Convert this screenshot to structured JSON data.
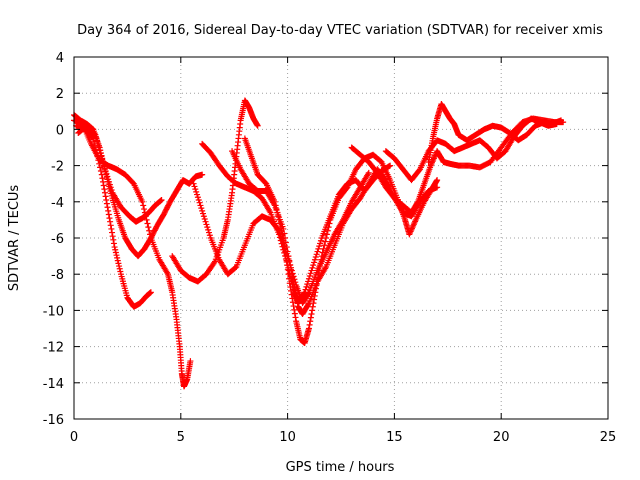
{
  "chart_data": {
    "type": "scatter",
    "title": "Day 364 of 2016, Sidereal Day-to-day VTEC variation (SDTVAR) for receiver xmis",
    "xlabel": "GPS time / hours",
    "ylabel": "SDTVAR / TECUs",
    "xlim": [
      0,
      25
    ],
    "ylim": [
      -16,
      4
    ],
    "xticks": [
      0,
      5,
      10,
      15,
      20,
      25
    ],
    "yticks": [
      -16,
      -14,
      -12,
      -10,
      -8,
      -6,
      -4,
      -2,
      0,
      2,
      4
    ],
    "grid": true,
    "marker": "plus",
    "color": "#ff0000",
    "series": [
      {
        "name": "",
        "points": [
          [
            0.0,
            0.8
          ],
          [
            0.3,
            0.5
          ],
          [
            0.6,
            0.3
          ],
          [
            0.9,
            0.0
          ],
          [
            1.2,
            -1.0
          ],
          [
            1.5,
            -2.5
          ],
          [
            1.8,
            -3.8
          ],
          [
            2.1,
            -5.0
          ],
          [
            2.4,
            -6.0
          ],
          [
            2.7,
            -6.6
          ],
          [
            3.0,
            -7.0
          ],
          [
            3.3,
            -6.6
          ],
          [
            3.6,
            -6.0
          ],
          [
            3.9,
            -5.3
          ],
          [
            4.2,
            -4.7
          ],
          [
            4.5,
            -4.0
          ],
          [
            4.8,
            -3.4
          ],
          [
            5.1,
            -2.8
          ],
          [
            5.4,
            -3.0
          ],
          [
            5.7,
            -2.6
          ],
          [
            6.0,
            -2.5
          ]
        ]
      },
      {
        "name": "",
        "points": [
          [
            0.2,
            -0.2
          ],
          [
            0.6,
            0.2
          ],
          [
            1.0,
            -0.3
          ],
          [
            1.4,
            -2.0
          ],
          [
            1.8,
            -3.5
          ],
          [
            2.2,
            -4.3
          ],
          [
            2.6,
            -4.8
          ],
          [
            2.9,
            -5.1
          ],
          [
            3.2,
            -4.9
          ],
          [
            3.5,
            -4.6
          ],
          [
            3.8,
            -4.2
          ],
          [
            4.1,
            -3.9
          ]
        ]
      },
      {
        "name": "",
        "points": [
          [
            0.1,
            0.2
          ],
          [
            0.5,
            0.0
          ],
          [
            0.9,
            -0.5
          ],
          [
            1.3,
            -2.5
          ],
          [
            1.6,
            -4.5
          ],
          [
            1.9,
            -6.5
          ],
          [
            2.2,
            -8.0
          ],
          [
            2.5,
            -9.3
          ],
          [
            2.8,
            -9.8
          ],
          [
            3.1,
            -9.6
          ],
          [
            3.4,
            -9.2
          ],
          [
            3.6,
            -9.0
          ]
        ]
      },
      {
        "name": "",
        "points": [
          [
            0.0,
            0.5
          ],
          [
            0.4,
            0.3
          ],
          [
            0.8,
            -0.8
          ],
          [
            1.2,
            -1.7
          ],
          [
            1.6,
            -2.0
          ],
          [
            2.0,
            -2.2
          ],
          [
            2.4,
            -2.5
          ],
          [
            2.8,
            -3.0
          ],
          [
            3.2,
            -4.0
          ],
          [
            3.6,
            -6.0
          ],
          [
            4.0,
            -7.2
          ],
          [
            4.4,
            -8.0
          ],
          [
            4.6,
            -9.0
          ],
          [
            4.8,
            -10.5
          ],
          [
            4.95,
            -12.0
          ],
          [
            5.05,
            -13.5
          ],
          [
            5.15,
            -14.2
          ],
          [
            5.3,
            -13.8
          ],
          [
            5.45,
            -12.8
          ]
        ]
      },
      {
        "name": "",
        "points": [
          [
            4.6,
            -7.0
          ],
          [
            5.0,
            -7.8
          ],
          [
            5.4,
            -8.2
          ],
          [
            5.8,
            -8.4
          ],
          [
            6.2,
            -8.0
          ],
          [
            6.6,
            -7.3
          ],
          [
            7.0,
            -6.0
          ],
          [
            7.2,
            -5.0
          ],
          [
            7.4,
            -3.5
          ],
          [
            7.6,
            -1.5
          ],
          [
            7.8,
            0.5
          ],
          [
            8.0,
            1.6
          ],
          [
            8.2,
            1.2
          ],
          [
            8.4,
            0.6
          ],
          [
            8.6,
            0.2
          ]
        ]
      },
      {
        "name": "",
        "points": [
          [
            6.0,
            -0.8
          ],
          [
            6.4,
            -1.3
          ],
          [
            6.8,
            -2.0
          ],
          [
            7.2,
            -2.6
          ],
          [
            7.6,
            -3.0
          ],
          [
            8.0,
            -3.2
          ],
          [
            8.4,
            -3.4
          ],
          [
            8.8,
            -3.8
          ],
          [
            9.2,
            -4.6
          ],
          [
            9.6,
            -5.8
          ],
          [
            10.0,
            -7.5
          ],
          [
            10.3,
            -9.0
          ],
          [
            10.5,
            -9.6
          ],
          [
            10.8,
            -9.0
          ],
          [
            11.2,
            -7.5
          ],
          [
            11.6,
            -6.0
          ],
          [
            12.0,
            -4.8
          ],
          [
            12.4,
            -3.6
          ],
          [
            12.8,
            -3.0
          ],
          [
            13.2,
            -2.8
          ],
          [
            13.6,
            -3.4
          ],
          [
            14.0,
            -2.8
          ],
          [
            14.4,
            -2.3
          ],
          [
            14.8,
            -2.0
          ]
        ]
      },
      {
        "name": "",
        "points": [
          [
            5.6,
            -3.0
          ],
          [
            6.0,
            -4.5
          ],
          [
            6.4,
            -6.0
          ],
          [
            6.8,
            -7.2
          ],
          [
            7.2,
            -8.0
          ],
          [
            7.6,
            -7.6
          ],
          [
            8.0,
            -6.4
          ],
          [
            8.4,
            -5.2
          ],
          [
            8.8,
            -4.8
          ],
          [
            9.2,
            -5.0
          ],
          [
            9.6,
            -5.6
          ],
          [
            10.0,
            -7.0
          ],
          [
            10.4,
            -8.6
          ],
          [
            10.7,
            -9.6
          ],
          [
            11.0,
            -9.0
          ],
          [
            11.4,
            -7.8
          ],
          [
            11.8,
            -6.8
          ],
          [
            12.2,
            -5.8
          ],
          [
            12.6,
            -5.0
          ],
          [
            13.0,
            -4.0
          ],
          [
            13.4,
            -3.2
          ],
          [
            13.8,
            -2.4
          ]
        ]
      },
      {
        "name": "",
        "points": [
          [
            8.0,
            -0.5
          ],
          [
            8.3,
            -1.5
          ],
          [
            8.6,
            -2.5
          ],
          [
            9.0,
            -3.0
          ],
          [
            9.4,
            -4.0
          ],
          [
            9.8,
            -6.0
          ],
          [
            10.1,
            -8.5
          ],
          [
            10.4,
            -10.6
          ],
          [
            10.6,
            -11.6
          ],
          [
            10.8,
            -11.8
          ],
          [
            11.0,
            -11.0
          ],
          [
            11.3,
            -9.0
          ],
          [
            11.6,
            -7.0
          ],
          [
            12.0,
            -5.0
          ],
          [
            12.4,
            -3.8
          ],
          [
            12.8,
            -3.2
          ],
          [
            13.2,
            -2.2
          ],
          [
            13.6,
            -1.6
          ],
          [
            14.0,
            -1.4
          ],
          [
            14.4,
            -1.8
          ],
          [
            14.8,
            -2.8
          ],
          [
            15.2,
            -4.0
          ],
          [
            15.5,
            -5.0
          ],
          [
            15.7,
            -5.8
          ],
          [
            16.0,
            -5.0
          ],
          [
            16.4,
            -4.0
          ],
          [
            16.8,
            -3.2
          ],
          [
            17.0,
            -2.8
          ]
        ]
      },
      {
        "name": "",
        "points": [
          [
            7.4,
            -1.2
          ],
          [
            7.8,
            -2.2
          ],
          [
            8.2,
            -3.0
          ],
          [
            8.6,
            -3.4
          ],
          [
            9.0,
            -3.4
          ],
          [
            9.4,
            -4.2
          ],
          [
            9.8,
            -5.5
          ],
          [
            10.2,
            -8.0
          ],
          [
            10.5,
            -9.8
          ],
          [
            10.7,
            -10.2
          ],
          [
            11.0,
            -9.6
          ],
          [
            11.4,
            -8.4
          ],
          [
            11.8,
            -7.6
          ],
          [
            12.2,
            -6.4
          ],
          [
            12.6,
            -5.2
          ],
          [
            13.0,
            -4.4
          ],
          [
            13.4,
            -3.8
          ],
          [
            13.8,
            -3.0
          ],
          [
            14.2,
            -2.2
          ],
          [
            14.6,
            -2.8
          ],
          [
            15.0,
            -3.8
          ],
          [
            15.4,
            -4.6
          ],
          [
            15.8,
            -4.8
          ],
          [
            16.2,
            -4.0
          ],
          [
            16.6,
            -3.4
          ],
          [
            17.0,
            -3.2
          ]
        ]
      },
      {
        "name": "",
        "points": [
          [
            13.0,
            -1.0
          ],
          [
            13.4,
            -1.4
          ],
          [
            13.8,
            -1.8
          ],
          [
            14.2,
            -2.4
          ],
          [
            14.6,
            -3.2
          ],
          [
            15.0,
            -3.8
          ],
          [
            15.4,
            -4.2
          ],
          [
            15.8,
            -4.6
          ],
          [
            16.1,
            -4.0
          ],
          [
            16.4,
            -3.0
          ],
          [
            16.7,
            -2.0
          ],
          [
            17.0,
            -1.2
          ],
          [
            17.3,
            -1.8
          ],
          [
            17.6,
            -1.9
          ],
          [
            18.0,
            -2.0
          ],
          [
            18.5,
            -2.0
          ],
          [
            19.0,
            -2.1
          ],
          [
            19.5,
            -1.8
          ],
          [
            20.0,
            -1.0
          ],
          [
            20.5,
            -0.2
          ],
          [
            21.0,
            0.4
          ],
          [
            21.5,
            0.6
          ],
          [
            22.0,
            0.5
          ],
          [
            22.5,
            0.4
          ],
          [
            22.9,
            0.4
          ]
        ]
      },
      {
        "name": "",
        "points": [
          [
            16.6,
            -1.8
          ],
          [
            16.8,
            -0.5
          ],
          [
            17.0,
            0.6
          ],
          [
            17.2,
            1.4
          ],
          [
            17.4,
            1.0
          ],
          [
            17.6,
            0.6
          ],
          [
            17.8,
            0.3
          ],
          [
            18.0,
            -0.3
          ],
          [
            18.4,
            -0.6
          ],
          [
            18.8,
            -0.3
          ],
          [
            19.2,
            0.0
          ],
          [
            19.6,
            0.2
          ],
          [
            20.0,
            0.1
          ],
          [
            20.4,
            -0.2
          ],
          [
            20.8,
            -0.6
          ],
          [
            21.2,
            -0.3
          ],
          [
            21.6,
            0.2
          ],
          [
            22.0,
            0.4
          ],
          [
            22.4,
            0.3
          ],
          [
            22.8,
            0.5
          ]
        ]
      },
      {
        "name": "",
        "points": [
          [
            14.6,
            -1.2
          ],
          [
            15.0,
            -1.6
          ],
          [
            15.4,
            -2.2
          ],
          [
            15.8,
            -2.8
          ],
          [
            16.2,
            -2.2
          ],
          [
            16.6,
            -1.2
          ],
          [
            17.0,
            -0.6
          ],
          [
            17.4,
            -0.8
          ],
          [
            17.8,
            -1.2
          ],
          [
            18.2,
            -1.0
          ],
          [
            18.6,
            -0.8
          ],
          [
            19.0,
            -0.6
          ],
          [
            19.4,
            -1.0
          ],
          [
            19.8,
            -1.6
          ],
          [
            20.2,
            -1.2
          ],
          [
            20.6,
            -0.4
          ],
          [
            21.0,
            0.2
          ],
          [
            21.4,
            0.6
          ],
          [
            21.8,
            0.4
          ],
          [
            22.2,
            0.2
          ],
          [
            22.6,
            0.3
          ]
        ]
      }
    ]
  }
}
